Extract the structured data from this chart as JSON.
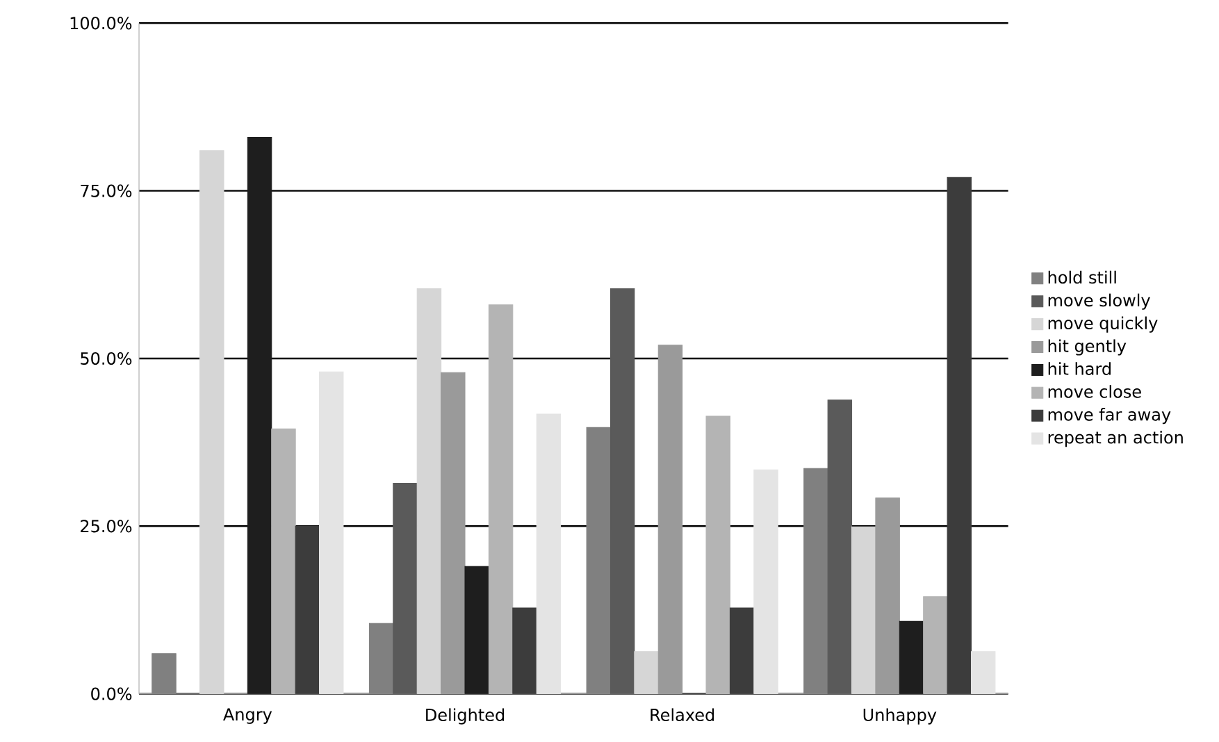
{
  "chart_data": {
    "type": "bar",
    "categories": [
      "Angry",
      "Delighted",
      "Relaxed",
      "Unhappy"
    ],
    "series": [
      {
        "name": "hold still",
        "color": "#808080",
        "values": [
          6,
          10.5,
          39.7,
          33.6
        ]
      },
      {
        "name": "move slowly",
        "color": "#5a5a5a",
        "values": [
          0,
          31.4,
          60.4,
          43.8
        ]
      },
      {
        "name": "move quickly",
        "color": "#d6d6d6",
        "values": [
          81,
          60.4,
          6.3,
          24.9
        ]
      },
      {
        "name": "hit gently",
        "color": "#9a9a9a",
        "values": [
          0,
          47.9,
          52,
          29.2
        ]
      },
      {
        "name": "hit hard",
        "color": "#1e1e1e",
        "values": [
          83,
          19,
          0,
          10.8
        ]
      },
      {
        "name": "move close",
        "color": "#b4b4b4",
        "values": [
          39.5,
          58,
          41.4,
          14.5
        ]
      },
      {
        "name": "move far away",
        "color": "#3c3c3c",
        "values": [
          25,
          12.8,
          12.8,
          77
        ]
      },
      {
        "name": "repeat an action",
        "color": "#e4e4e4",
        "values": [
          48,
          41.7,
          33.4,
          6.3
        ]
      }
    ],
    "ylim": [
      0,
      100
    ],
    "yticks": [
      {
        "value": 0,
        "label": "0.0%"
      },
      {
        "value": 25,
        "label": "25.0%"
      },
      {
        "value": 50,
        "label": "50.0%"
      },
      {
        "value": 75,
        "label": "75.0%"
      },
      {
        "value": 100,
        "label": "100.0%"
      }
    ],
    "grid": "y",
    "legend": "right"
  }
}
